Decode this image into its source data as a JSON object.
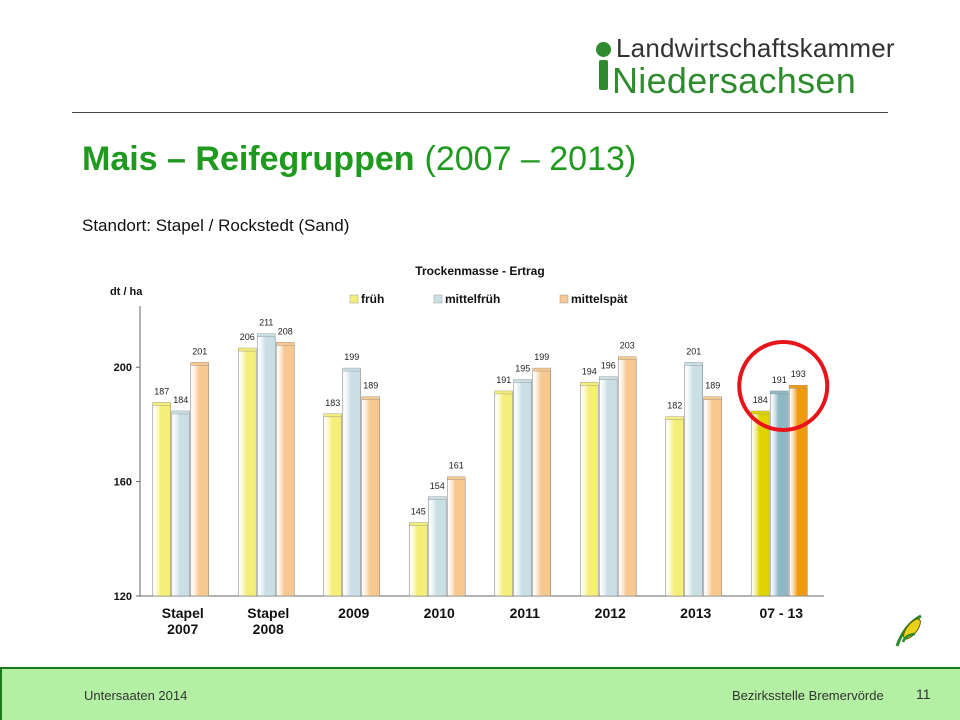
{
  "logo": {
    "line1": "Landwirtschaftskammer",
    "line2": "Niedersachsen"
  },
  "slide": {
    "title_main": "Mais – Reifegruppen",
    "title_years": "(2007 – 2013)",
    "subtitle": "Standort: Stapel / Rockstedt (Sand)"
  },
  "footer": {
    "left": "Untersaaten 2014",
    "right": "Bezirksstelle Bremervörde",
    "page": "11"
  },
  "icons": {
    "corn": "corn-icon",
    "highlight": "red-circle-highlight"
  },
  "chart_data": {
    "type": "bar",
    "title": "Trockenmasse - Ertrag",
    "ylabel": "dt / ha",
    "ylim": [
      120,
      220
    ],
    "yticks": [
      "120",
      "160",
      "200"
    ],
    "categories": [
      "Stapel\n2007",
      "Stapel\n2008",
      "2009",
      "2010",
      "2011",
      "2012",
      "2013",
      "07 - 13"
    ],
    "legend_position": "top",
    "series": [
      {
        "name": "früh",
        "color": "#f5ef7a",
        "values": [
          187,
          206,
          183,
          145,
          191,
          194,
          182,
          184
        ]
      },
      {
        "name": "mittelfrüh",
        "color": "#c9dfe5",
        "values": [
          184,
          211,
          199,
          154,
          195,
          196,
          201,
          191
        ]
      },
      {
        "name": "mittelspät",
        "color": "#f7c890",
        "values": [
          201,
          208,
          189,
          161,
          199,
          203,
          189,
          193
        ]
      }
    ],
    "highlight_series_colors": [
      "#e0d400",
      "#8fb8c6",
      "#f09a10"
    ],
    "highlighted_category": "07 - 13"
  }
}
